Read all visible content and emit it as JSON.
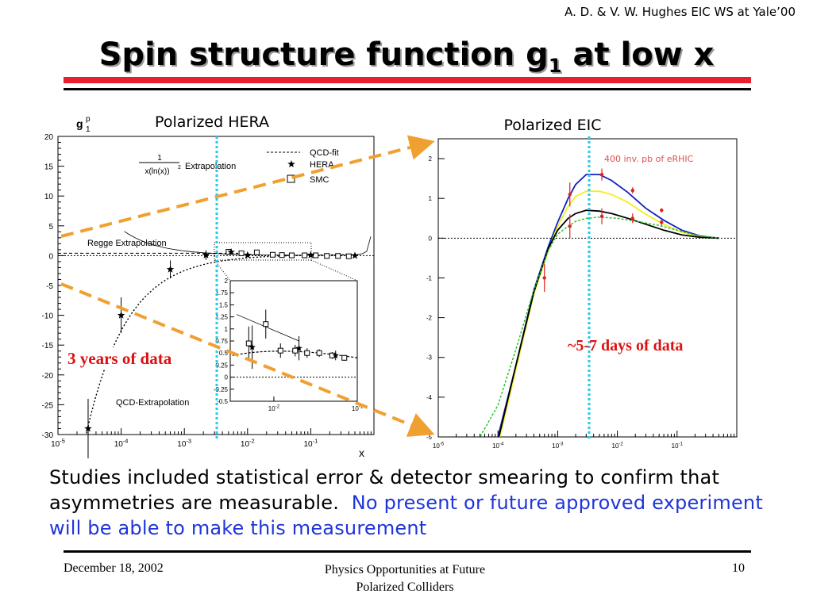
{
  "header": {
    "credit": "A. D. & V. W. Hughes EIC WS at Yale’00"
  },
  "slide": {
    "title_main": "Spin structure function g",
    "title_sub": "1",
    "title_tail": " at low x"
  },
  "chart_data": [
    {
      "type": "scatter",
      "title": "Polarized HERA",
      "ylabel_main": "g",
      "ylabel_sup": "p",
      "ylabel_sub": "1",
      "xlabel": "x",
      "xscale": "log",
      "xlim": [
        1e-05,
        1
      ],
      "ylim": [
        -30,
        20
      ],
      "yticks": [
        "20",
        "15",
        "10",
        "5",
        "0",
        "-5",
        "-10",
        "-15",
        "-20",
        "-25",
        "-30"
      ],
      "xtick_bases": [
        "10",
        "10",
        "10",
        "10",
        "10"
      ],
      "xtick_exps": [
        "-5",
        "-4",
        "-3",
        "-2",
        "-1"
      ],
      "formula_num": "1",
      "formula_den": "x(ln(x))",
      "formula_sup": "2",
      "annotations": [
        "Extrapolation",
        "Regge Extrapolation",
        "QCD-Extrapolation",
        "3 years of data"
      ],
      "legend": [
        "QCD-fit",
        "HERA",
        "SMC"
      ],
      "series": [
        {
          "name": "HERA",
          "marker": "star",
          "x": [
            3e-05,
            0.0001,
            0.0006,
            0.0022,
            0.0055,
            0.01,
            0.1,
            0.5
          ],
          "y": [
            -29,
            -10,
            -2.3,
            0.1,
            0.6,
            0.1,
            0.1,
            0.0
          ],
          "err": [
            5,
            3,
            1.5,
            0.8,
            0.4,
            0.3,
            0.15,
            0.1
          ]
        },
        {
          "name": "SMC",
          "marker": "square",
          "x": [
            0.005,
            0.008,
            0.014,
            0.025,
            0.035,
            0.05,
            0.08,
            0.12,
            0.18,
            0.27,
            0.4
          ],
          "y": [
            0.65,
            0.4,
            0.55,
            0.15,
            0.1,
            0.05,
            0.05,
            0.05,
            -0.05,
            -0.05,
            -0.1
          ],
          "err": [
            0.3,
            0.25,
            0.2,
            0.15,
            0.12,
            0.1,
            0.08,
            0.07,
            0.06,
            0.05,
            0.05
          ]
        }
      ],
      "inset": {
        "xlim": [
          0.003,
          0.1
        ],
        "ylim": [
          -0.5,
          2
        ],
        "yticks": [
          "2",
          "1.75",
          "1.5",
          "1.25",
          "1",
          "0.75",
          "0.5",
          "0.25",
          "0",
          "-0.25",
          "-0.5"
        ],
        "xtick_bases": [
          "10",
          "10"
        ],
        "xtick_exps": [
          "-2",
          "-1"
        ],
        "smc": {
          "x": [
            0.005,
            0.008,
            0.012,
            0.018,
            0.025,
            0.035,
            0.05,
            0.07
          ],
          "y": [
            0.7,
            1.1,
            0.55,
            0.55,
            0.5,
            0.5,
            0.45,
            0.4
          ],
          "err": [
            0.35,
            0.3,
            0.15,
            0.12,
            0.1,
            0.08,
            0.07,
            0.06
          ]
        },
        "hera": {
          "x": [
            0.0055,
            0.02,
            0.055
          ],
          "y": [
            0.62,
            0.6,
            0.45
          ],
          "err": [
            0.45,
            0.25,
            0.1
          ]
        }
      }
    },
    {
      "type": "line",
      "title": "Polarized EIC",
      "xscale": "log",
      "xlim": [
        1e-05,
        1
      ],
      "ylim": [
        -5,
        2.5
      ],
      "yticks": [
        "2",
        "1",
        "0",
        "-1",
        "-2",
        "-3",
        "-4",
        "-5"
      ],
      "xtick_bases": [
        "10",
        "10",
        "10",
        "10",
        "10"
      ],
      "xtick_exps": [
        "-5",
        "-4",
        "-3",
        "-2",
        "-1"
      ],
      "annotations": [
        "400 inv. pb of eRHIC",
        "~5-7 days of data"
      ],
      "colors": {
        "blue": "#1020c0",
        "yellow": "#f2f020",
        "black": "#000000",
        "green": "#20c020",
        "points": "#e02020"
      },
      "series": [
        {
          "color": "blue",
          "x": [
            4e-05,
            0.0001,
            0.0002,
            0.0004,
            0.0007,
            0.001,
            0.0015,
            0.002,
            0.003,
            0.005,
            0.008,
            0.015,
            0.03,
            0.06,
            0.12,
            0.25,
            0.5
          ],
          "y": [
            -7,
            -5,
            -3.2,
            -1.3,
            -0.2,
            0.4,
            1.0,
            1.35,
            1.6,
            1.6,
            1.45,
            1.15,
            0.75,
            0.45,
            0.2,
            0.05,
            0
          ]
        },
        {
          "color": "yellow",
          "x": [
            4e-05,
            0.0001,
            0.0002,
            0.0004,
            0.0007,
            0.001,
            0.0015,
            0.002,
            0.003,
            0.005,
            0.008,
            0.015,
            0.03,
            0.06,
            0.12,
            0.25,
            0.5
          ],
          "y": [
            -7,
            -5.2,
            -3.3,
            -1.4,
            -0.3,
            0.3,
            0.8,
            1.05,
            1.18,
            1.18,
            1.1,
            0.9,
            0.6,
            0.35,
            0.15,
            0.03,
            0
          ]
        },
        {
          "color": "black",
          "x": [
            4e-05,
            0.0001,
            0.0002,
            0.0004,
            0.0007,
            0.001,
            0.0015,
            0.002,
            0.003,
            0.005,
            0.008,
            0.015,
            0.03,
            0.06,
            0.12,
            0.25,
            0.5
          ],
          "y": [
            -7,
            -5.1,
            -3.2,
            -1.35,
            -0.25,
            0.2,
            0.5,
            0.62,
            0.7,
            0.68,
            0.62,
            0.5,
            0.35,
            0.2,
            0.08,
            0.02,
            0
          ]
        },
        {
          "color": "green",
          "x": [
            2e-05,
            5e-05,
            0.0001,
            0.0002,
            0.0004,
            0.0007,
            0.001,
            0.0015,
            0.002,
            0.003,
            0.005,
            0.01,
            0.02,
            0.05,
            0.1,
            0.2,
            0.5
          ],
          "y": [
            -5.5,
            -5.0,
            -4.2,
            -2.8,
            -1.3,
            -0.3,
            0.1,
            0.3,
            0.42,
            0.5,
            0.53,
            0.5,
            0.43,
            0.32,
            0.2,
            0.08,
            0
          ]
        }
      ],
      "points": {
        "x": [
          0.0006,
          0.0016,
          0.0016,
          0.0055,
          0.0055,
          0.018,
          0.018,
          0.055,
          0.055
        ],
        "y": [
          -1.0,
          1.1,
          0.3,
          1.6,
          0.55,
          1.2,
          0.5,
          0.7,
          0.4
        ],
        "err": [
          0.35,
          0.3,
          0.3,
          0.15,
          0.2,
          0.08,
          0.12,
          0.05,
          0.08
        ]
      }
    }
  ],
  "body": {
    "text_black": "Studies included statistical error & detector smearing to confirm that asymmetries are measurable.",
    "text_blue": "No present or future approved experiment will be able to make this measurement"
  },
  "footer": {
    "date": "December 18, 2002",
    "center_line1": "Physics Opportunities at Future",
    "center_line2": "Polarized Colliders",
    "page": "10"
  }
}
